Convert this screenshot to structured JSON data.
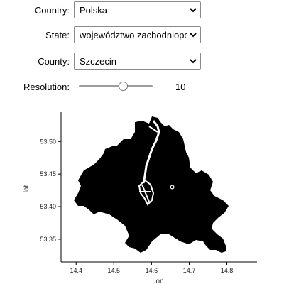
{
  "controls": {
    "country": {
      "label": "Country:",
      "value": "Polska"
    },
    "state": {
      "label": "State:",
      "value": "województwo zachodniopomorskie"
    },
    "county": {
      "label": "County:",
      "value": "Szczecin"
    },
    "resolution": {
      "label": "Resolution:",
      "value": 10,
      "slider_fraction": 0.6
    }
  },
  "chart_data": {
    "type": "map",
    "xlabel": "lon",
    "ylabel": "lat",
    "xticks": [
      "14.4",
      "14.5",
      "14.6",
      "14.7",
      "14.8"
    ],
    "yticks": [
      "53.35",
      "53.40",
      "53.45",
      "53.50"
    ],
    "xlim": [
      14.36,
      14.88
    ],
    "ylim": [
      53.315,
      53.545
    ],
    "region_fill": "#000000",
    "marker": {
      "lon": 14.655,
      "lat": 53.43
    }
  }
}
